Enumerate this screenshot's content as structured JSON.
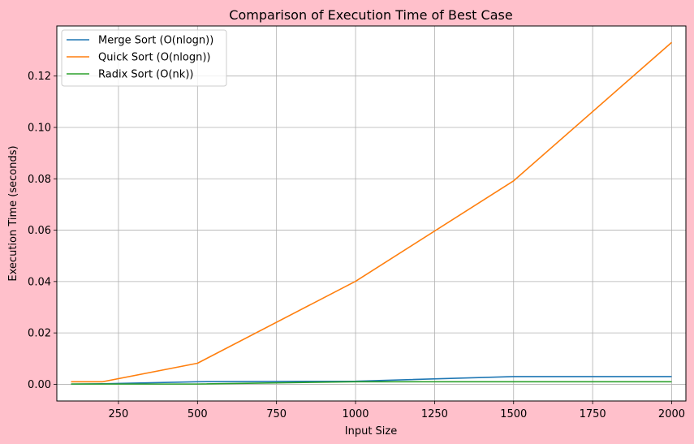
{
  "chart_data": {
    "type": "line",
    "title": "Comparison of Execution Time of Best Case",
    "xlabel": "Input Size",
    "ylabel": "Execution Time (seconds)",
    "xlim": [
      55,
      2045
    ],
    "ylim": [
      -0.0065,
      0.1395
    ],
    "xticks": [
      250,
      500,
      750,
      1000,
      1250,
      1500,
      1750,
      2000
    ],
    "xtick_labels": [
      "250",
      "500",
      "750",
      "1000",
      "1250",
      "1500",
      "1750",
      "2000"
    ],
    "yticks": [
      0.0,
      0.02,
      0.04,
      0.06,
      0.08,
      0.1,
      0.12
    ],
    "ytick_labels": [
      "0.00",
      "0.02",
      "0.04",
      "0.06",
      "0.08",
      "0.10",
      "0.12"
    ],
    "grid": true,
    "legend_position": "top-left",
    "x": [
      100,
      200,
      500,
      1000,
      1500,
      2000
    ],
    "series": [
      {
        "name": "Merge Sort (O(nlogn))",
        "color": "#1f77b4",
        "values": [
          0.0001,
          0.0002,
          0.001,
          0.0012,
          0.003,
          0.003
        ]
      },
      {
        "name": "Quick Sort (O(nlogn))",
        "color": "#ff7f0e",
        "values": [
          0.001,
          0.001,
          0.0082,
          0.0401,
          0.0792,
          0.1331
        ]
      },
      {
        "name": "Radix Sort (O(nk))",
        "color": "#2ca02c",
        "values": [
          0.0001,
          0.0001,
          0.0001,
          0.001,
          0.001,
          0.001
        ]
      }
    ]
  }
}
